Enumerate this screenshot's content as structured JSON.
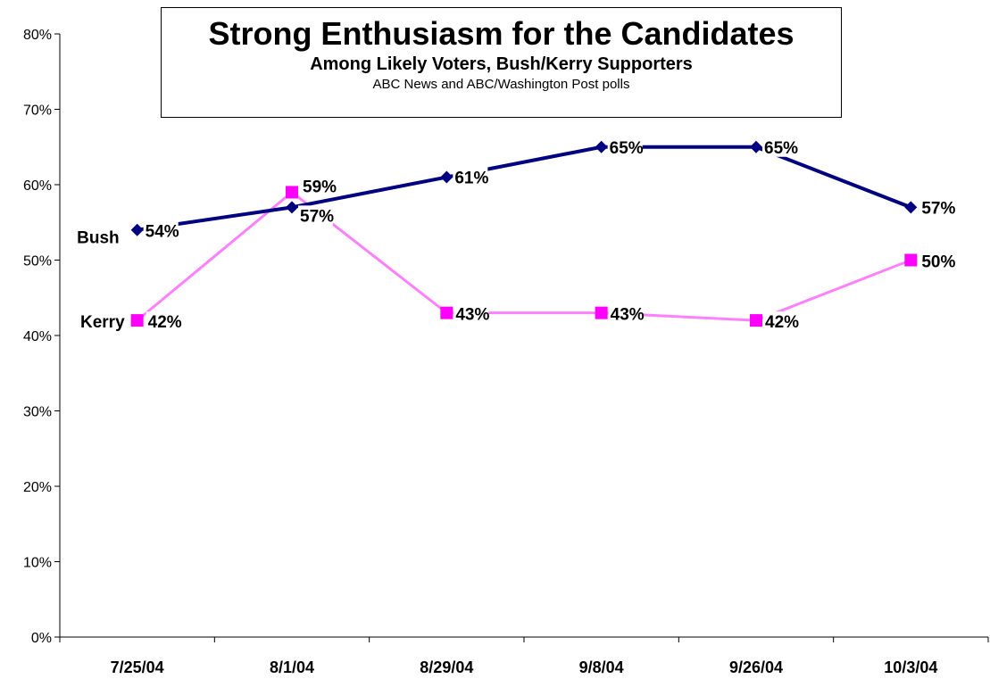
{
  "chart_data": {
    "type": "line",
    "title": "Strong Enthusiasm for the Candidates",
    "subtitle": "Among Likely Voters, Bush/Kerry Supporters",
    "source": "ABC News and ABC/Washington Post polls",
    "categories": [
      "7/25/04",
      "8/1/04",
      "8/29/04",
      "9/8/04",
      "9/26/04",
      "10/3/04"
    ],
    "ylim": [
      0,
      80
    ],
    "yticks": [
      0,
      10,
      20,
      30,
      40,
      50,
      60,
      70,
      80
    ],
    "ytick_labels": [
      "0%",
      "10%",
      "20%",
      "30%",
      "40%",
      "50%",
      "60%",
      "70%",
      "80%"
    ],
    "grid": false,
    "series": [
      {
        "name": "Bush",
        "values": [
          54,
          57,
          61,
          65,
          65,
          57
        ],
        "labels": [
          "54%",
          "57%",
          "61%",
          "65%",
          "65%",
          "57%"
        ],
        "color": "#000080",
        "marker": "diamond"
      },
      {
        "name": "Kerry",
        "values": [
          42,
          59,
          43,
          43,
          42,
          50
        ],
        "labels": [
          "42%",
          "59%",
          "43%",
          "43%",
          "42%",
          "50%"
        ],
        "color": "#ff00ff",
        "line_color": "#ff80ff",
        "marker": "square"
      }
    ]
  }
}
